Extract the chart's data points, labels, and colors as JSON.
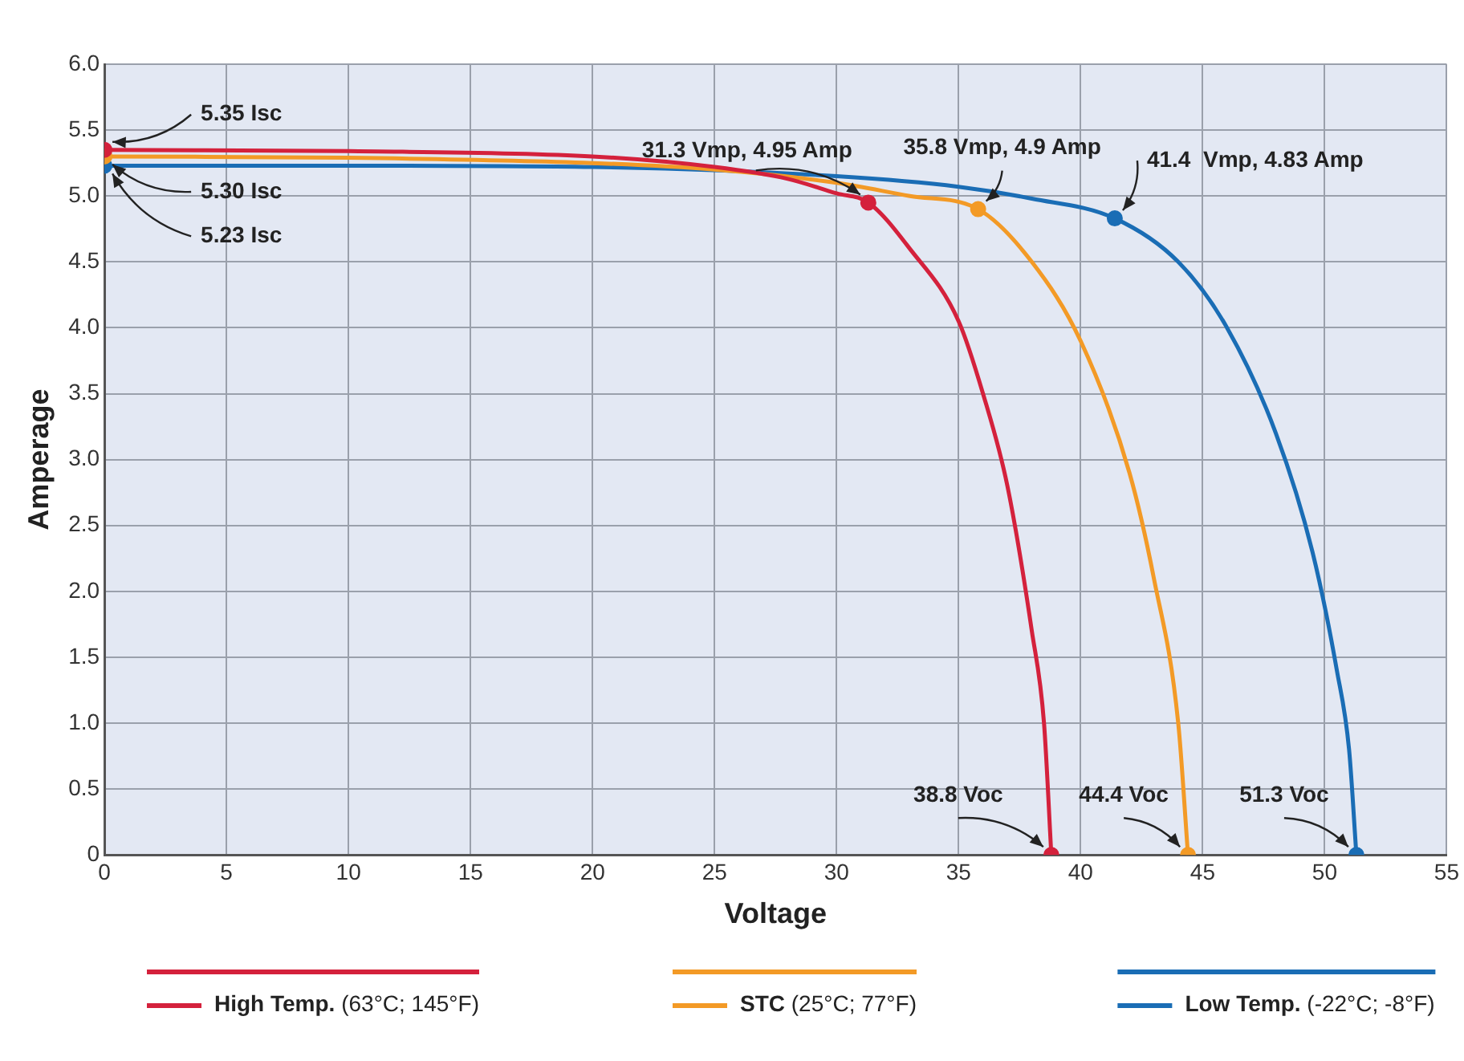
{
  "chart_data": {
    "type": "line",
    "xlabel": "Voltage",
    "ylabel": "Amperage",
    "xlim": [
      0,
      55
    ],
    "xticks": [
      0,
      5,
      10,
      15,
      20,
      25,
      30,
      35,
      40,
      45,
      50,
      55
    ],
    "ylim": [
      0,
      6
    ],
    "yticks": [
      0,
      {
        "value": 0.5,
        "label": "0.5"
      },
      {
        "value": 1,
        "label": "1.0"
      },
      {
        "value": 1.5,
        "label": "1.5"
      },
      {
        "value": 2,
        "label": "2.0"
      },
      {
        "value": 2.5,
        "label": "2.5"
      },
      {
        "value": 3,
        "label": "3.0"
      },
      {
        "value": 3.5,
        "label": "3.5"
      },
      {
        "value": 4,
        "label": "4.0"
      },
      {
        "value": 4.5,
        "label": "4.5"
      },
      {
        "value": 5,
        "label": "5.0"
      },
      {
        "value": 5.5,
        "label": "5.5"
      },
      {
        "value": 6,
        "label": "6.0"
      }
    ],
    "grid": true,
    "legend": "bottom",
    "marker": "none",
    "series": [
      {
        "name": "High Temp. (63°C; 145°F)",
        "color": "#d4213c",
        "x": [
          0,
          10,
          20,
          25,
          28,
          30,
          31.3,
          33,
          35,
          36,
          37,
          38,
          38.5,
          38.8
        ],
        "values": [
          5.35,
          5.34,
          5.3,
          5.22,
          5.13,
          5.02,
          4.95,
          4.6,
          4.05,
          3.5,
          2.8,
          1.7,
          1.0,
          0
        ]
      },
      {
        "name": "STC (25°C; 77°F)",
        "color": "#f39a26",
        "x": [
          0,
          10,
          20,
          25,
          30,
          33,
          35.8,
          38,
          40,
          42,
          43,
          44,
          44.4
        ],
        "values": [
          5.3,
          5.29,
          5.25,
          5.2,
          5.1,
          5.0,
          4.9,
          4.5,
          3.9,
          2.9,
          2.1,
          1.0,
          0
        ]
      },
      {
        "name": "Low Temp. (-22°C; -8°F)",
        "color": "#1a6db5",
        "x": [
          0,
          10,
          20,
          30,
          35,
          38,
          41.4,
          44,
          46,
          48,
          49.5,
          50.5,
          51,
          51.3
        ],
        "values": [
          5.23,
          5.23,
          5.22,
          5.15,
          5.07,
          4.98,
          4.83,
          4.5,
          4.0,
          3.2,
          2.3,
          1.4,
          0.8,
          0
        ]
      },
      {
        "type": "scatter",
        "marker": "circle",
        "color": "#d4213c",
        "x": [
          0,
          31.3,
          38.8
        ],
        "values": [
          5.35,
          4.95,
          0
        ]
      },
      {
        "type": "scatter",
        "marker": "circle",
        "color": "#f39a26",
        "x": [
          0,
          35.8,
          44.4
        ],
        "values": [
          5.3,
          4.9,
          0
        ]
      },
      {
        "type": "scatter",
        "marker": "circle",
        "color": "#1a6db5",
        "x": [
          0,
          41.4,
          51.3
        ],
        "values": [
          5.23,
          4.83,
          0
        ]
      }
    ],
    "annotations": [
      {
        "text": "5.35 Isc",
        "x": 0,
        "y": 5.35
      },
      {
        "text": "5.30 Isc",
        "x": 0,
        "y": 5.3
      },
      {
        "text": "5.23 Isc",
        "x": 0,
        "y": 5.23
      },
      {
        "text": "31.3 Vmp, 4.95 Amp",
        "x": 31.3,
        "y": 4.95
      },
      {
        "text": "35.8 Vmp, 4.9 Amp",
        "x": 35.8,
        "y": 4.9
      },
      {
        "text": "41.4  Vmp, 4.83 Amp",
        "x": 41.4,
        "y": 4.83
      },
      {
        "text": "38.8 Voc",
        "x": 38.8,
        "y": 0
      },
      {
        "text": "44.4 Voc",
        "x": 44.4,
        "y": 0
      },
      {
        "text": "51.3 Voc",
        "x": 51.3,
        "y": 0
      }
    ]
  }
}
